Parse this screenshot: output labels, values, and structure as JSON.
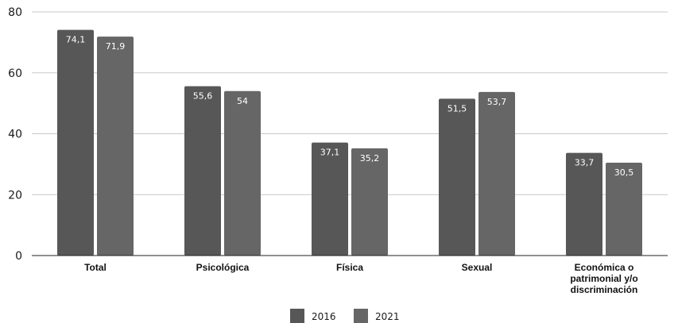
{
  "chart_data": {
    "type": "bar",
    "title": "",
    "xlabel": "",
    "ylabel": "",
    "ylim": [
      0,
      80
    ],
    "yticks": [
      0,
      20,
      40,
      60,
      80
    ],
    "grid": true,
    "legend_position": "bottom",
    "categories": [
      [
        "Total"
      ],
      [
        "Psicológica"
      ],
      [
        "Física"
      ],
      [
        "Sexual"
      ],
      [
        "Económica o",
        "patrimonial y/o",
        "discriminación"
      ]
    ],
    "series": [
      {
        "name": "2016",
        "color": "#575757",
        "values": [
          74.1,
          55.6,
          37.1,
          51.5,
          33.7
        ],
        "labels": [
          "74,1",
          "55,6",
          "37,1",
          "51,5",
          "33,7"
        ]
      },
      {
        "name": "2021",
        "color": "#666666",
        "values": [
          71.9,
          54,
          35.2,
          53.7,
          30.5
        ],
        "labels": [
          "71,9",
          "54",
          "35,2",
          "53,7",
          "30,5"
        ]
      }
    ]
  }
}
